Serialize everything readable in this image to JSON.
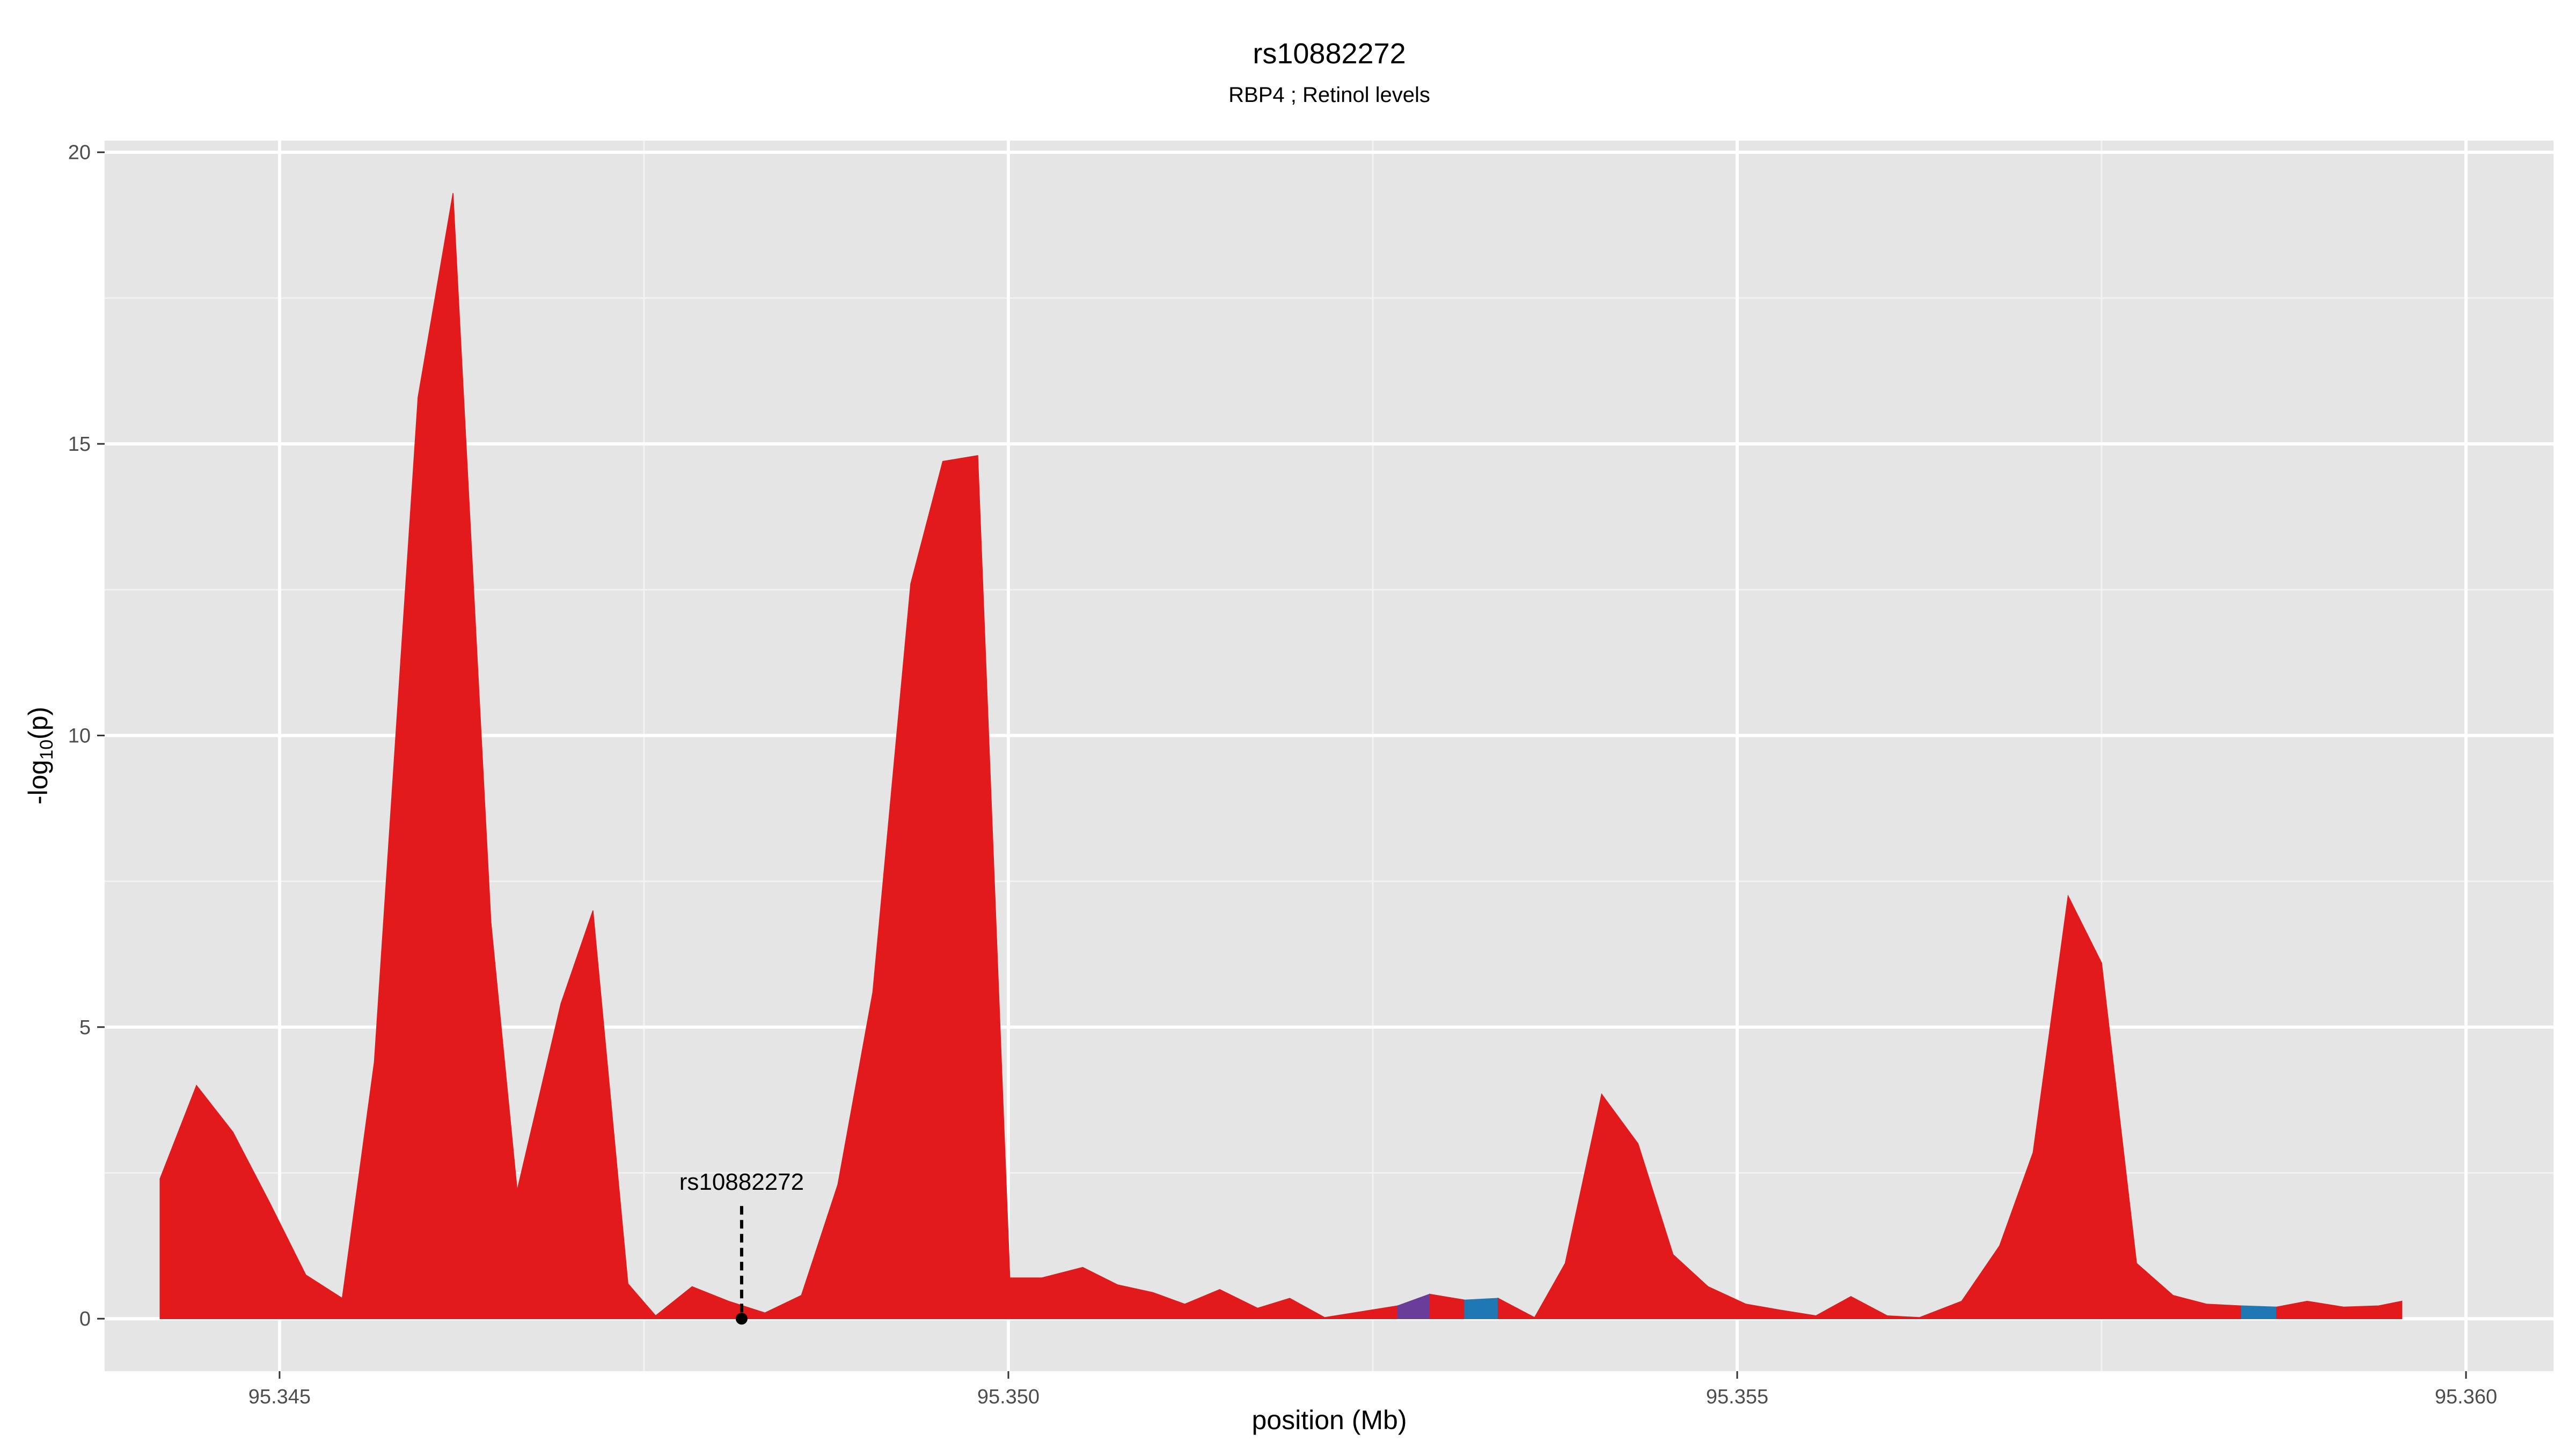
{
  "chart_data": {
    "type": "area",
    "title": "rs10882272",
    "subtitle": "RBP4 ; Retinol levels",
    "xlabel": "position (Mb)",
    "ylabel_main": "-log",
    "ylabel_sub": "10",
    "ylabel_tail": "(p)",
    "xlim": [
      95.3438,
      95.3606
    ],
    "ylim": [
      -0.9,
      20.2
    ],
    "x_ticks": [
      95.345,
      95.35,
      95.355,
      95.36
    ],
    "x_tick_labels": [
      "95.345",
      "95.350",
      "95.355",
      "95.360"
    ],
    "y_ticks": [
      0,
      5,
      10,
      15,
      20
    ],
    "y_tick_labels": [
      "0",
      "5",
      "10",
      "15",
      "20"
    ],
    "grid": true,
    "colors": {
      "panel": "#e5e5e5",
      "grid_major": "#ffffff",
      "grid_minor": "#f2f2f2",
      "fill_default": "#e31a1c",
      "fill_purple": "#6a3d9a",
      "fill_blue": "#1f78b4"
    },
    "annotation": {
      "label": "rs10882272",
      "x": 95.34817,
      "y": 0
    },
    "x": [
      95.34418,
      95.34443,
      95.34468,
      95.34493,
      95.34518,
      95.34543,
      95.34565,
      95.34595,
      95.34619,
      95.34645,
      95.34663,
      95.34693,
      95.34715,
      95.34739,
      95.34758,
      95.34783,
      95.34808,
      95.34833,
      95.34858,
      95.34883,
      95.34907,
      95.34933,
      95.34955,
      95.34979,
      95.35001,
      95.35023,
      95.35051,
      95.35075,
      95.35099,
      95.35121,
      95.35145,
      95.35171,
      95.35193,
      95.35217,
      95.35242,
      95.35267,
      95.35289,
      95.35313,
      95.35336,
      95.35361,
      95.35382,
      95.35407,
      95.35432,
      95.35456,
      95.3548,
      95.35506,
      95.35529,
      95.35554,
      95.35578,
      95.35603,
      95.35625,
      95.35654,
      95.3568,
      95.35703,
      95.35727,
      95.3575,
      95.35774,
      95.35799,
      95.35822,
      95.35846,
      95.3587,
      95.35891,
      95.35916,
      95.3594,
      95.35956
    ],
    "y": [
      2.4,
      4.0,
      3.2,
      2.0,
      0.75,
      0.35,
      4.4,
      15.8,
      19.3,
      6.8,
      2.2,
      5.4,
      7.0,
      0.6,
      0.05,
      0.55,
      0.3,
      0.1,
      0.4,
      2.3,
      5.6,
      12.6,
      14.7,
      14.8,
      0.7,
      0.7,
      0.88,
      0.58,
      0.45,
      0.25,
      0.5,
      0.18,
      0.35,
      0.02,
      0.12,
      0.22,
      0.42,
      0.32,
      0.35,
      0.02,
      0.95,
      3.85,
      3.0,
      1.1,
      0.55,
      0.25,
      0.15,
      0.05,
      0.38,
      0.05,
      0.02,
      0.3,
      1.25,
      2.85,
      7.25,
      6.1,
      0.95,
      0.4,
      0.25,
      0.22,
      0.2,
      0.3,
      0.2,
      0.22,
      0.3
    ],
    "segments": [
      {
        "from": 0,
        "to": 35,
        "color": "fill_default"
      },
      {
        "from": 35,
        "to": 36,
        "color": "fill_purple"
      },
      {
        "from": 36,
        "to": 37,
        "color": "fill_default"
      },
      {
        "from": 37,
        "to": 38,
        "color": "fill_blue"
      },
      {
        "from": 38,
        "to": 59,
        "color": "fill_default"
      },
      {
        "from": 59,
        "to": 60,
        "color": "fill_blue"
      },
      {
        "from": 60,
        "to": 64,
        "color": "fill_default"
      }
    ]
  }
}
